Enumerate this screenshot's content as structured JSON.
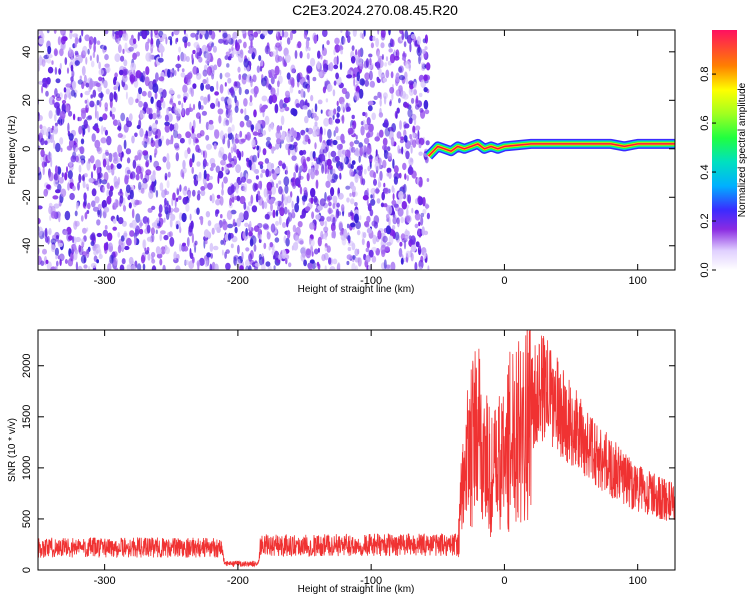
{
  "title": "C2E3.2024.270.08.45.R20",
  "chart_data": [
    {
      "type": "heatmap",
      "xlabel": "Height of straight line (km)",
      "ylabel": "Frequency (Hz)",
      "xlim": [
        -350,
        128
      ],
      "ylim": [
        -50,
        49
      ],
      "xticks": [
        "-300",
        "-200",
        "-100",
        "0",
        "100"
      ],
      "yticks": [
        "-40",
        "-20",
        "0",
        "20",
        "40"
      ],
      "noise_region": {
        "x": [
          -350,
          -57
        ],
        "y": [
          -50,
          49
        ]
      },
      "signal_line": {
        "x": [
          -57,
          -50,
          -45,
          -40,
          -35,
          -30,
          -25,
          -20,
          -15,
          -10,
          -5,
          0,
          20,
          40,
          60,
          80,
          90,
          100,
          128
        ],
        "y": [
          -3,
          1,
          0,
          -1,
          1,
          0,
          1,
          2,
          0,
          1,
          0,
          1,
          2,
          2,
          2,
          2,
          1,
          2,
          2
        ]
      },
      "colorbar": {
        "label": "Normalized spectral amplitude",
        "range": [
          0,
          0.98
        ],
        "ticks": [
          "0.0",
          "0.2",
          "0.4",
          "0.6",
          "0.8"
        ]
      }
    },
    {
      "type": "line",
      "xlabel": "Height of straight line (km)",
      "ylabel": "SNR (10 * v/v)",
      "xlim": [
        -350,
        128
      ],
      "ylim": [
        0,
        2350
      ],
      "xticks": [
        "-300",
        "-200",
        "-100",
        "0",
        "100"
      ],
      "yticks": [
        "0",
        "500",
        "1000",
        "1500",
        "2000"
      ],
      "color": "#f03232",
      "profile": {
        "x": [
          -350,
          -212,
          -210,
          -185,
          -183,
          -35,
          -30,
          -20,
          -10,
          0,
          10,
          20,
          30,
          40,
          60,
          80,
          100,
          128
        ],
        "y": [
          220,
          220,
          60,
          60,
          240,
          250,
          1000,
          1350,
          900,
          1100,
          1500,
          1650,
          1800,
          1600,
          1250,
          1000,
          800,
          650
        ]
      }
    }
  ]
}
